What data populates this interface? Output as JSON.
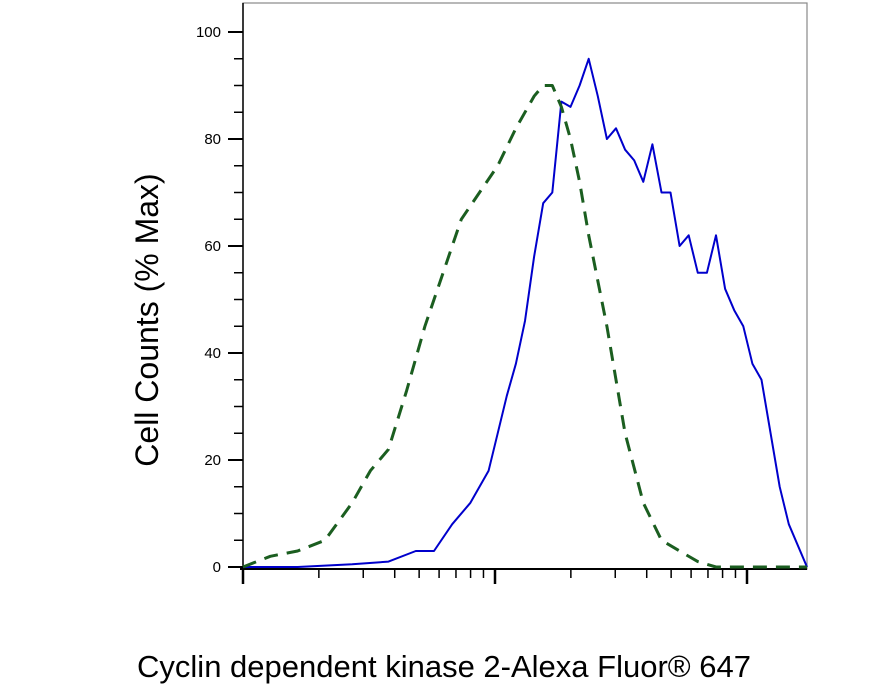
{
  "chart_data": {
    "type": "line",
    "xlabel": "Cyclin dependent kinase 2-Alexa Fluor® 647",
    "ylabel": "Cell Counts (% Max)",
    "xscale": "log",
    "xlim": [
      0.3,
      3.4
    ],
    "ylim": [
      0,
      100
    ],
    "yticks": [
      0,
      20,
      40,
      60,
      80,
      100
    ],
    "grid": false,
    "legend": "none",
    "series": [
      {
        "color": "#1a237e",
        "line_color": "#0000cc",
        "style": "solid",
        "x": [
          0.3,
          0.6,
          0.9,
          1.1,
          1.25,
          1.35,
          1.45,
          1.55,
          1.65,
          1.7,
          1.75,
          1.8,
          1.85,
          1.9,
          1.95,
          2.0,
          2.05,
          2.1,
          2.15,
          2.2,
          2.25,
          2.3,
          2.35,
          2.4,
          2.45,
          2.5,
          2.55,
          2.6,
          2.65,
          2.7,
          2.75,
          2.8,
          2.85,
          2.9,
          2.95,
          3.0,
          3.05,
          3.1,
          3.15,
          3.2,
          3.25,
          3.3,
          3.4
        ],
        "y": [
          0,
          0,
          0.5,
          1,
          3,
          3,
          8,
          12,
          18,
          25,
          32,
          38,
          46,
          58,
          68,
          70,
          87,
          86,
          90,
          95,
          88,
          80,
          82,
          78,
          76,
          72,
          79,
          70,
          70,
          60,
          62,
          55,
          55,
          62,
          52,
          48,
          45,
          38,
          35,
          25,
          15,
          8,
          0
        ]
      },
      {
        "color": "#1b5e20",
        "line_color": "#1b5e20",
        "style": "dashed",
        "x": [
          0.3,
          0.45,
          0.6,
          0.75,
          0.9,
          1.0,
          1.1,
          1.2,
          1.3,
          1.4,
          1.5,
          1.6,
          1.7,
          1.8,
          1.9,
          1.95,
          2.0,
          2.05,
          2.1,
          2.15,
          2.2,
          2.3,
          2.4,
          2.5,
          2.6,
          2.7,
          2.8,
          2.9,
          3.0,
          3.1,
          3.4
        ],
        "y": [
          0,
          2,
          3,
          5,
          12,
          18,
          22,
          33,
          45,
          55,
          65,
          70,
          75,
          82,
          88,
          90,
          90,
          86,
          80,
          72,
          62,
          45,
          25,
          12,
          5,
          3,
          1,
          0,
          0,
          0,
          0
        ]
      }
    ]
  }
}
